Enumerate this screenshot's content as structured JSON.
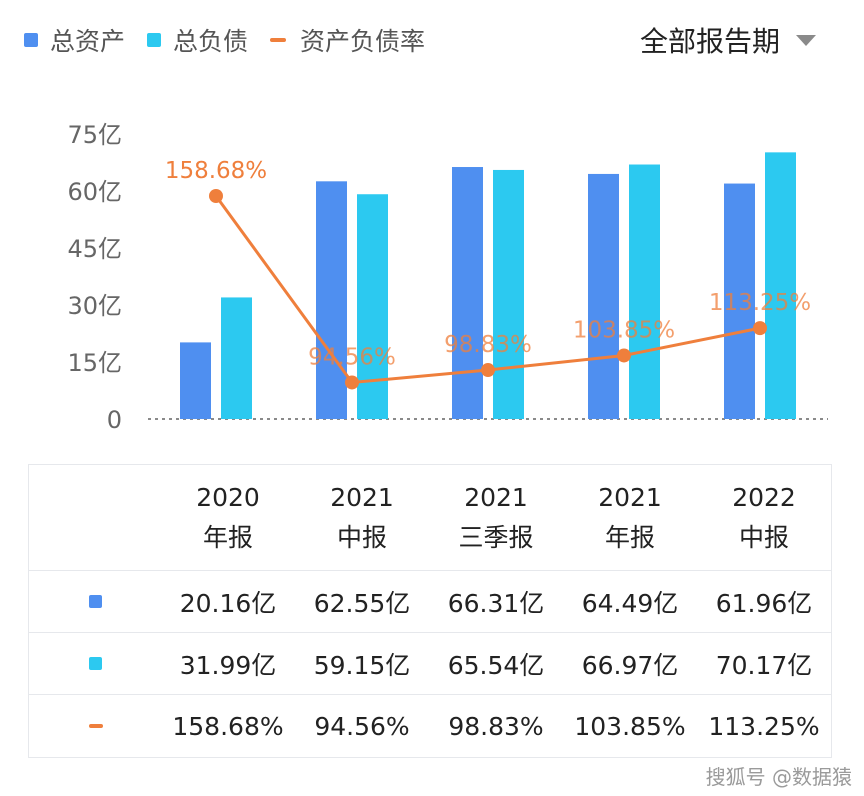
{
  "legend": {
    "items": [
      {
        "label": "总资产",
        "color": "#4f8ff0",
        "kind": "square"
      },
      {
        "label": "总负债",
        "color": "#2cc9f0",
        "kind": "square"
      },
      {
        "label": "资产负债率",
        "color": "#ef7f3c",
        "kind": "line"
      }
    ]
  },
  "period_selector": {
    "label": "全部报告期"
  },
  "chart_data": {
    "type": "bar",
    "categories": [
      "2020 年报",
      "2021 中报",
      "2021 三季报",
      "2021 年报",
      "2022 中报"
    ],
    "series": [
      {
        "name": "总资产",
        "type": "bar",
        "values": [
          20.16,
          62.55,
          66.31,
          64.49,
          61.96
        ],
        "color": "#4f8ff0"
      },
      {
        "name": "总负债",
        "type": "bar",
        "values": [
          31.99,
          59.15,
          65.54,
          66.97,
          70.17
        ],
        "color": "#2cc9f0"
      },
      {
        "name": "资产负债率",
        "type": "line",
        "values": [
          158.68,
          94.56,
          98.83,
          103.85,
          113.25
        ],
        "unit": "%",
        "color": "#ef7f3c"
      }
    ],
    "point_labels": [
      "158.68%",
      "94.56%",
      "98.83%",
      "103.85%",
      "113.25%"
    ],
    "ylim": [
      0,
      75
    ],
    "y_ticks": [
      {
        "value": 0,
        "label": "0"
      },
      {
        "value": 15,
        "label": "15亿"
      },
      {
        "value": 30,
        "label": "30亿"
      },
      {
        "value": 45,
        "label": "45亿"
      },
      {
        "value": 60,
        "label": "60亿"
      },
      {
        "value": 75,
        "label": "75亿"
      }
    ],
    "line_scale": {
      "min": 82,
      "max": 180
    }
  },
  "table": {
    "headers": [
      [
        "2020",
        "年报"
      ],
      [
        "2021",
        "中报"
      ],
      [
        "2021",
        "三季报"
      ],
      [
        "2021",
        "年报"
      ],
      [
        "2022",
        "中报"
      ]
    ],
    "rows": [
      {
        "series": "总资产",
        "color": "#4f8ff0",
        "kind": "square",
        "cells": [
          "20.16亿",
          "62.55亿",
          "66.31亿",
          "64.49亿",
          "61.96亿"
        ]
      },
      {
        "series": "总负债",
        "color": "#2cc9f0",
        "kind": "square",
        "cells": [
          "31.99亿",
          "59.15亿",
          "65.54亿",
          "66.97亿",
          "70.17亿"
        ]
      },
      {
        "series": "资产负债率",
        "color": "#ef7f3c",
        "kind": "line",
        "cells": [
          "158.68%",
          "94.56%",
          "98.83%",
          "103.85%",
          "113.25%"
        ]
      }
    ]
  },
  "watermark": "搜狐号 @数据猿"
}
